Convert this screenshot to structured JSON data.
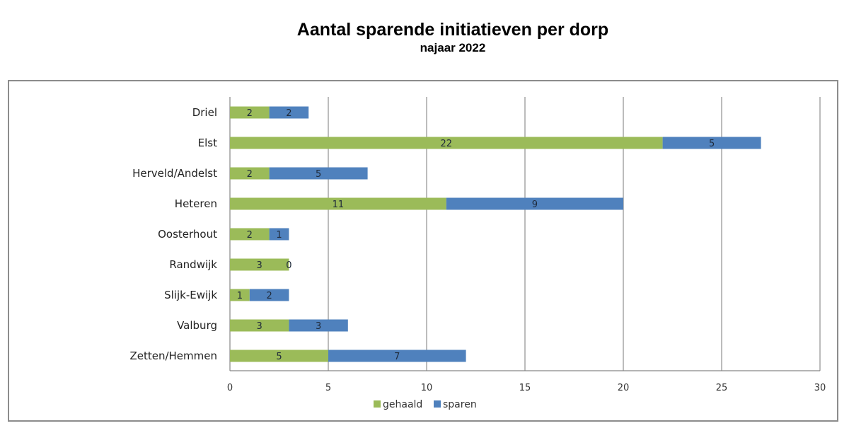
{
  "chart_data": {
    "type": "bar",
    "orientation": "horizontal",
    "stacked": true,
    "title": "Aantal sparende initiatieven per dorp",
    "subtitle": "najaar 2022",
    "xlabel": "",
    "ylabel": "",
    "categories": [
      "Driel",
      "Elst",
      "Herveld/Andelst",
      "Heteren",
      "Oosterhout",
      "Randwijk",
      "Slijk-Ewijk",
      "Valburg",
      "Zetten/Hemmen"
    ],
    "series": [
      {
        "name": "gehaald",
        "color": "#9bbb59",
        "values": [
          2,
          22,
          2,
          11,
          2,
          3,
          1,
          3,
          5
        ]
      },
      {
        "name": "sparen",
        "color": "#4f81bd",
        "values": [
          2,
          5,
          5,
          9,
          1,
          0,
          2,
          3,
          7
        ]
      }
    ],
    "xlim": [
      0,
      30
    ],
    "xticks": [
      "0",
      "5",
      "10",
      "15",
      "20",
      "25",
      "30"
    ],
    "grid": "vertical",
    "legend": "bottom"
  }
}
